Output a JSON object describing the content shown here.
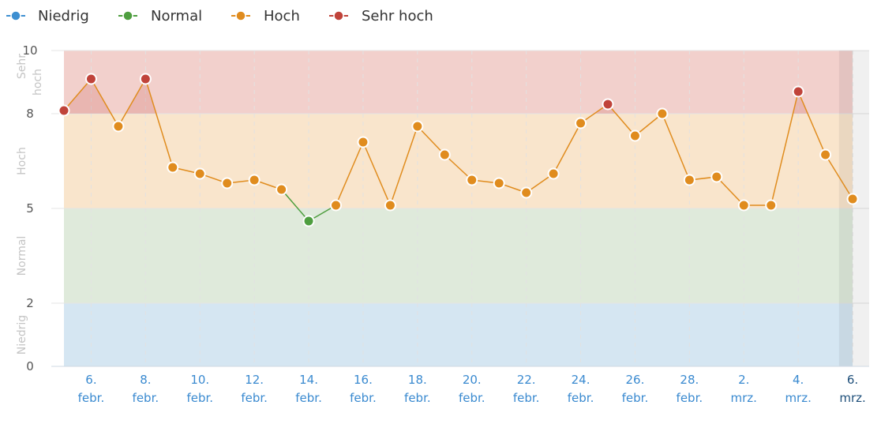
{
  "legend": [
    {
      "label": "Niedrig",
      "color": "#3d8fd1"
    },
    {
      "label": "Normal",
      "color": "#4e9e3f"
    },
    {
      "label": "Hoch",
      "color": "#e08c1e"
    },
    {
      "label": "Sehr hoch",
      "color": "#c0433a"
    }
  ],
  "chart_data": {
    "type": "line",
    "ylim": [
      0,
      10
    ],
    "yticks": [
      "0",
      "2",
      "5",
      "8",
      "10"
    ],
    "bands": [
      {
        "name": "Niedrig",
        "from": 0,
        "to": 2,
        "color": "#d5e6f2"
      },
      {
        "name": "Normal",
        "from": 2,
        "to": 5,
        "color": "#dfeadb"
      },
      {
        "name": "Hoch",
        "from": 5,
        "to": 8,
        "color": "#f9e5cc"
      },
      {
        "name": "Sehr hoch",
        "from": 8,
        "to": 10,
        "color": "#f2d0cc"
      }
    ],
    "band_labels": [
      {
        "text": "Niedrig",
        "center": 1
      },
      {
        "text": "Normal",
        "center": 3.5
      },
      {
        "text": "Hoch",
        "center": 6.5
      },
      {
        "text": "Sehr",
        "center": 9.5
      },
      {
        "text": "hoch",
        "center": 9
      }
    ],
    "x_labels": [
      {
        "day": 1,
        "line1": "6.",
        "line2": "febr."
      },
      {
        "day": 3,
        "line1": "8.",
        "line2": "febr."
      },
      {
        "day": 5,
        "line1": "10.",
        "line2": "febr."
      },
      {
        "day": 7,
        "line1": "12.",
        "line2": "febr."
      },
      {
        "day": 9,
        "line1": "14.",
        "line2": "febr."
      },
      {
        "day": 11,
        "line1": "16.",
        "line2": "febr."
      },
      {
        "day": 13,
        "line1": "18.",
        "line2": "febr."
      },
      {
        "day": 15,
        "line1": "20.",
        "line2": "febr."
      },
      {
        "day": 17,
        "line1": "22.",
        "line2": "febr."
      },
      {
        "day": 19,
        "line1": "24.",
        "line2": "febr."
      },
      {
        "day": 21,
        "line1": "26.",
        "line2": "febr."
      },
      {
        "day": 23,
        "line1": "28.",
        "line2": "febr."
      },
      {
        "day": 25,
        "line1": "2.",
        "line2": "mrz."
      },
      {
        "day": 27,
        "line1": "4.",
        "line2": "mrz."
      },
      {
        "day": 29,
        "line1": "6.",
        "line2": "mrz."
      }
    ],
    "x_range": [
      0,
      29
    ],
    "current_day": 29,
    "values": [
      8.1,
      9.1,
      7.6,
      9.1,
      6.3,
      6.1,
      5.8,
      5.9,
      5.6,
      4.6,
      5.1,
      7.1,
      5.1,
      7.6,
      6.7,
      5.9,
      5.8,
      5.5,
      6.1,
      7.7,
      8.3,
      7.3,
      8.0,
      5.9,
      6.0,
      5.1,
      5.1,
      8.7,
      6.7,
      5.3
    ],
    "level_colors": {
      "niedrig": "#3d8fd1",
      "normal": "#4e9e3f",
      "hoch": "#e08c1e",
      "sehr_hoch": "#c0433a"
    }
  }
}
